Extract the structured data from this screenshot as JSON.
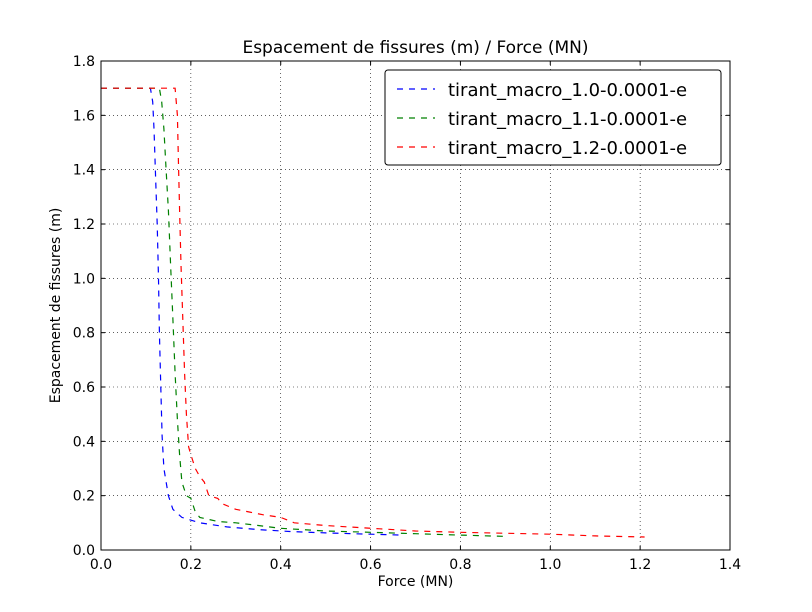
{
  "chart_data": {
    "type": "line",
    "title": "Espacement de fissures (m) / Force (MN)",
    "xlabel": "Force (MN)",
    "ylabel": "Espacement de fissures (m)",
    "xlim": [
      0.0,
      1.4
    ],
    "ylim": [
      0.0,
      1.8
    ],
    "xticks": [
      "0.0",
      "0.2",
      "0.4",
      "0.6",
      "0.8",
      "1.0",
      "1.2",
      "1.4"
    ],
    "yticks": [
      "0.0",
      "0.2",
      "0.4",
      "0.6",
      "0.8",
      "1.0",
      "1.2",
      "1.4",
      "1.6",
      "1.8"
    ],
    "grid": true,
    "legend_position": "top-right",
    "line_style": "dashed",
    "series": [
      {
        "name": "tirant_macro_1.0-0.0001-e",
        "color": "#0000ff",
        "x": [
          0.0,
          0.11,
          0.115,
          0.118,
          0.12,
          0.122,
          0.125,
          0.128,
          0.13,
          0.133,
          0.136,
          0.14,
          0.15,
          0.16,
          0.18,
          0.22,
          0.28,
          0.35,
          0.42,
          0.5,
          0.6,
          0.67
        ],
        "y": [
          1.7,
          1.7,
          1.65,
          1.55,
          1.45,
          1.35,
          1.2,
          1.0,
          0.8,
          0.6,
          0.42,
          0.3,
          0.2,
          0.15,
          0.12,
          0.1,
          0.085,
          0.075,
          0.068,
          0.063,
          0.058,
          0.055
        ]
      },
      {
        "name": "tirant_macro_1.1-0.0001-e",
        "color": "#008000",
        "x": [
          0.0,
          0.13,
          0.135,
          0.14,
          0.145,
          0.15,
          0.155,
          0.16,
          0.165,
          0.17,
          0.175,
          0.18,
          0.19,
          0.2,
          0.21,
          0.22,
          0.26,
          0.3,
          0.35,
          0.4,
          0.5,
          0.6,
          0.7,
          0.8,
          0.9
        ],
        "y": [
          1.7,
          1.7,
          1.65,
          1.55,
          1.4,
          1.25,
          1.05,
          0.85,
          0.65,
          0.48,
          0.35,
          0.25,
          0.2,
          0.19,
          0.14,
          0.12,
          0.105,
          0.1,
          0.09,
          0.08,
          0.07,
          0.065,
          0.06,
          0.055,
          0.05
        ]
      },
      {
        "name": "tirant_macro_1.2-0.0001-e",
        "color": "#ff0000",
        "x": [
          0.0,
          0.165,
          0.17,
          0.172,
          0.175,
          0.178,
          0.182,
          0.186,
          0.19,
          0.195,
          0.2,
          0.21,
          0.22,
          0.23,
          0.24,
          0.26,
          0.27,
          0.3,
          0.33,
          0.36,
          0.4,
          0.43,
          0.5,
          0.55,
          0.62,
          0.7,
          0.8,
          1.0,
          1.1,
          1.21
        ],
        "y": [
          1.7,
          1.7,
          1.6,
          1.45,
          1.25,
          1.05,
          0.85,
          0.65,
          0.5,
          0.38,
          0.35,
          0.3,
          0.27,
          0.25,
          0.2,
          0.19,
          0.17,
          0.15,
          0.14,
          0.13,
          0.12,
          0.1,
          0.09,
          0.085,
          0.078,
          0.07,
          0.065,
          0.058,
          0.052,
          0.048
        ]
      }
    ]
  }
}
